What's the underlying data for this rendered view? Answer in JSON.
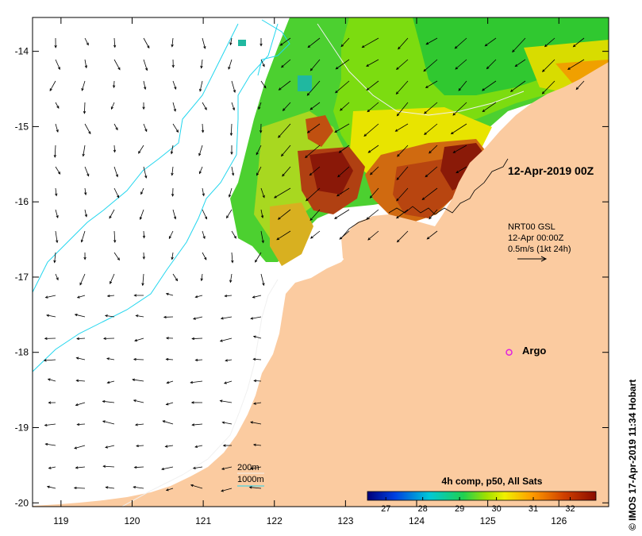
{
  "map": {
    "x_ticks": [
      "119",
      "120",
      "121",
      "122",
      "123",
      "124",
      "125",
      "126"
    ],
    "y_ticks": [
      "-14",
      "-15",
      "-16",
      "-17",
      "-18",
      "-19",
      "-20"
    ],
    "x_range": [
      118.6,
      126.7
    ],
    "y_range": [
      -20.05,
      -13.55
    ],
    "date_label": "12-Apr-2019 00Z",
    "nrt_lines": [
      "NRT00 GSL",
      "12-Apr 00:00Z",
      "0.5m/s (1kt 24h)"
    ],
    "argo_label": "Argo",
    "argo_point": {
      "lon": 125.3,
      "lat": -18.0
    },
    "depth_legend": {
      "line1": "200m",
      "line2": "1000m"
    },
    "colorbar_title": "4h comp, p50, All Sats",
    "colorbar_ticks": [
      "27",
      "28",
      "29",
      "30",
      "31",
      "32"
    ],
    "colorbar_range": [
      26.5,
      32.7
    ],
    "copyright": "© IMOS 17-Apr-2019 11:34 Hobart"
  },
  "colors": {
    "land": "#fbcba0",
    "contour_200": "#f0f0f0",
    "contour_1000": "#22d6ee",
    "argo": "#e020e0"
  }
}
